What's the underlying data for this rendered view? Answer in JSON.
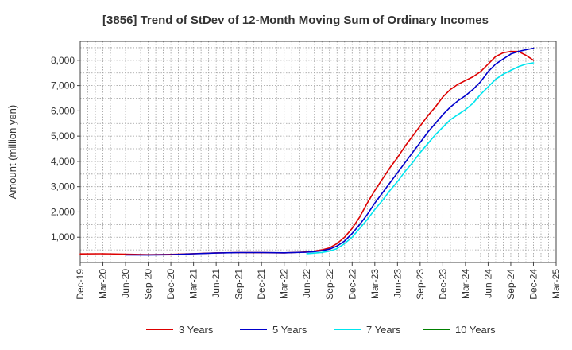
{
  "chart_data": {
    "type": "line",
    "title": "[3856]  Trend of StDev of 12-Month Moving Sum of Ordinary Incomes",
    "ylabel": "Amount (million yen)",
    "xlabel": "",
    "x_ticks": [
      "Dec-19",
      "Mar-20",
      "Jun-20",
      "Sep-20",
      "Dec-20",
      "Mar-21",
      "Jun-21",
      "Sep-21",
      "Dec-21",
      "Mar-22",
      "Jun-22",
      "Sep-22",
      "Dec-22",
      "Mar-23",
      "Jun-23",
      "Sep-23",
      "Dec-23",
      "Mar-24",
      "Jun-24",
      "Sep-24",
      "Dec-24",
      "Mar-25"
    ],
    "y_ticks": [
      "1,000",
      "2,000",
      "3,000",
      "4,000",
      "5,000",
      "6,000",
      "7,000",
      "8,000"
    ],
    "x_range": [
      "Dec-19",
      "Mar-25"
    ],
    "ylim": [
      0,
      8750
    ],
    "grid": true,
    "legend_position": "bottom",
    "series": [
      {
        "name": "3 Years",
        "color": "#dd0000",
        "x": [
          "Dec-19",
          "Mar-20",
          "Jun-20",
          "Sep-20",
          "Dec-20",
          "Mar-21",
          "Jun-21",
          "Sep-21",
          "Dec-21",
          "Mar-22",
          "Jun-22",
          "Jul-22",
          "Aug-22",
          "Sep-22",
          "Oct-22",
          "Nov-22",
          "Dec-22",
          "Jan-23",
          "Feb-23",
          "Mar-23",
          "Apr-23",
          "May-23",
          "Jun-23",
          "Jul-23",
          "Aug-23",
          "Sep-23",
          "Oct-23",
          "Nov-23",
          "Dec-23",
          "Jan-24",
          "Feb-24",
          "Mar-24",
          "Apr-24",
          "May-24",
          "Jun-24",
          "Jul-24",
          "Aug-24",
          "Sep-24",
          "Oct-24",
          "Nov-24",
          "Dec-24"
        ],
        "values": [
          340,
          345,
          330,
          310,
          320,
          350,
          380,
          395,
          390,
          380,
          420,
          450,
          500,
          580,
          750,
          1000,
          1350,
          1800,
          2350,
          2850,
          3300,
          3750,
          4150,
          4600,
          5000,
          5400,
          5800,
          6150,
          6550,
          6850,
          7050,
          7200,
          7350,
          7550,
          7850,
          8150,
          8300,
          8350,
          8350,
          8200,
          8000
        ]
      },
      {
        "name": "5 Years",
        "color": "#0000cc",
        "x": [
          "Jun-20",
          "Sep-20",
          "Dec-20",
          "Mar-21",
          "Jun-21",
          "Sep-21",
          "Dec-21",
          "Mar-22",
          "Jun-22",
          "Jul-22",
          "Aug-22",
          "Sep-22",
          "Oct-22",
          "Nov-22",
          "Dec-22",
          "Jan-23",
          "Feb-23",
          "Mar-23",
          "Apr-23",
          "May-23",
          "Jun-23",
          "Jul-23",
          "Aug-23",
          "Sep-23",
          "Oct-23",
          "Nov-23",
          "Dec-23",
          "Jan-24",
          "Feb-24",
          "Mar-24",
          "Apr-24",
          "May-24",
          "Jun-24",
          "Jul-24",
          "Aug-24",
          "Sep-24",
          "Oct-24",
          "Nov-24",
          "Dec-24"
        ],
        "values": [
          300,
          295,
          310,
          345,
          375,
          395,
          395,
          385,
          410,
          430,
          470,
          530,
          650,
          850,
          1150,
          1500,
          1900,
          2350,
          2750,
          3150,
          3550,
          3950,
          4350,
          4750,
          5150,
          5500,
          5850,
          6150,
          6400,
          6600,
          6850,
          7150,
          7550,
          7850,
          8050,
          8250,
          8350,
          8420,
          8480
        ]
      },
      {
        "name": "7 Years",
        "color": "#00e5ee",
        "x": [
          "Jun-22",
          "Jul-22",
          "Aug-22",
          "Sep-22",
          "Oct-22",
          "Nov-22",
          "Dec-22",
          "Jan-23",
          "Feb-23",
          "Mar-23",
          "Apr-23",
          "May-23",
          "Jun-23",
          "Jul-23",
          "Aug-23",
          "Sep-23",
          "Oct-23",
          "Nov-23",
          "Dec-23",
          "Jan-24",
          "Feb-24",
          "Mar-24",
          "Apr-24",
          "May-24",
          "Jun-24",
          "Jul-24",
          "Aug-24",
          "Sep-24",
          "Oct-24",
          "Nov-24",
          "Dec-24"
        ],
        "values": [
          350,
          370,
          400,
          450,
          550,
          750,
          1000,
          1350,
          1700,
          2100,
          2450,
          2850,
          3200,
          3600,
          3950,
          4350,
          4700,
          5050,
          5350,
          5650,
          5850,
          6050,
          6300,
          6650,
          6950,
          7250,
          7450,
          7600,
          7750,
          7850,
          7900
        ]
      },
      {
        "name": "10 Years",
        "color": "#008000",
        "x": [],
        "values": []
      }
    ]
  }
}
